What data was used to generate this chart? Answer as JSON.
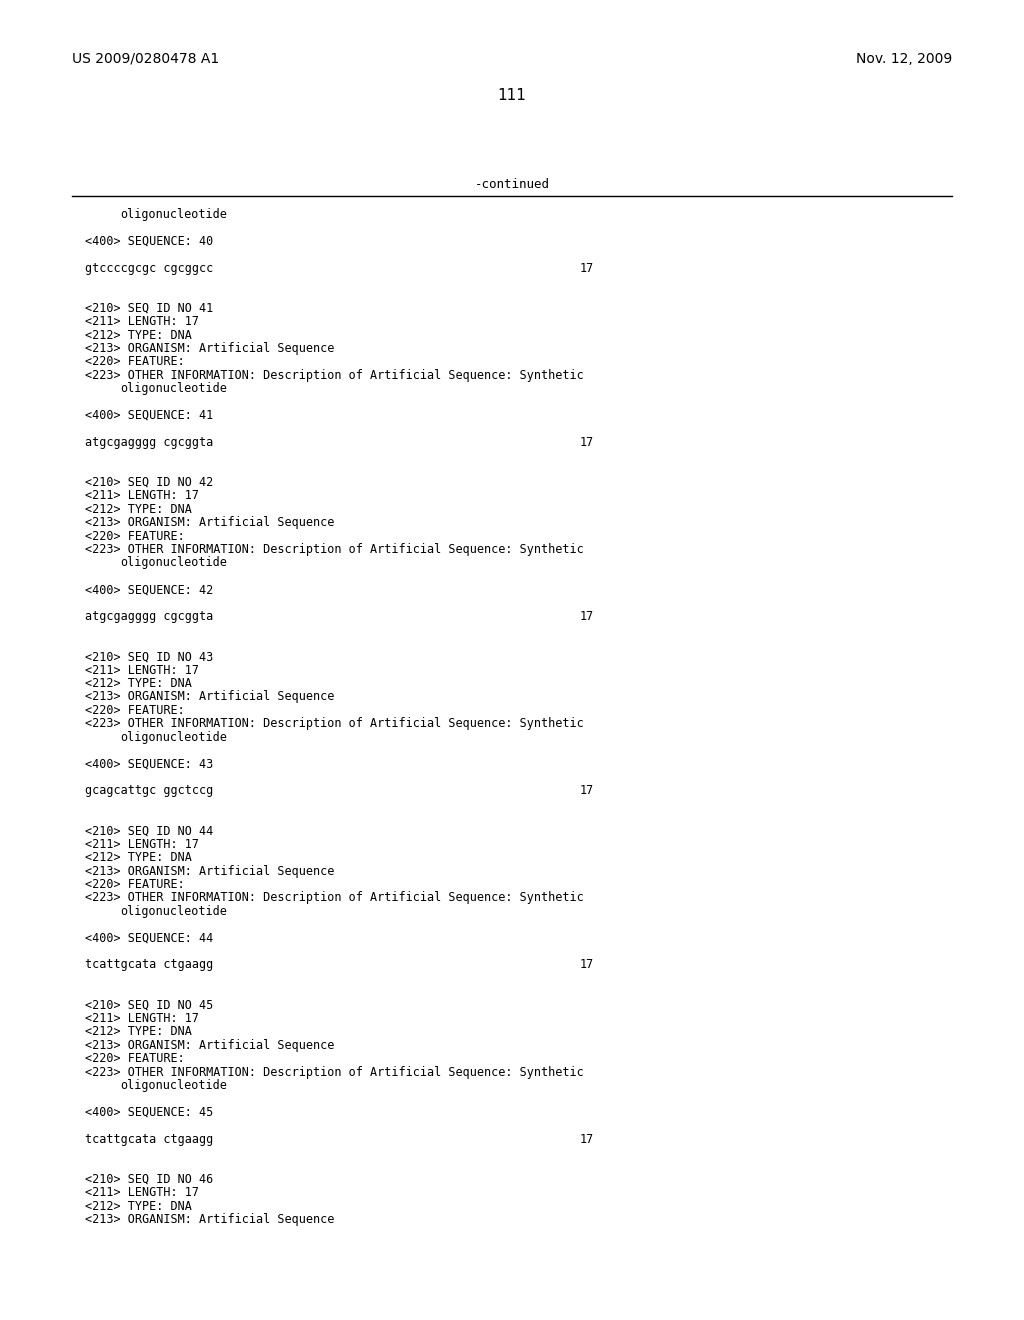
{
  "patent_number": "US 2009/0280478 A1",
  "date": "Nov. 12, 2009",
  "page_number": "111",
  "continued_label": "-continued",
  "background_color": "#ffffff",
  "text_color": "#000000",
  "lines": [
    {
      "type": "mono_indent",
      "text": "oligonucleotide"
    },
    {
      "type": "blank"
    },
    {
      "type": "mono",
      "text": "<400> SEQUENCE: 40"
    },
    {
      "type": "blank"
    },
    {
      "type": "mono_seq",
      "text": "gtccccgcgc cgcggcc",
      "number": "17"
    },
    {
      "type": "blank"
    },
    {
      "type": "blank"
    },
    {
      "type": "mono",
      "text": "<210> SEQ ID NO 41"
    },
    {
      "type": "mono",
      "text": "<211> LENGTH: 17"
    },
    {
      "type": "mono",
      "text": "<212> TYPE: DNA"
    },
    {
      "type": "mono",
      "text": "<213> ORGANISM: Artificial Sequence"
    },
    {
      "type": "mono",
      "text": "<220> FEATURE:"
    },
    {
      "type": "mono",
      "text": "<223> OTHER INFORMATION: Description of Artificial Sequence: Synthetic"
    },
    {
      "type": "mono_indent",
      "text": "oligonucleotide"
    },
    {
      "type": "blank"
    },
    {
      "type": "mono",
      "text": "<400> SEQUENCE: 41"
    },
    {
      "type": "blank"
    },
    {
      "type": "mono_seq",
      "text": "atgcgagggg cgcggta",
      "number": "17"
    },
    {
      "type": "blank"
    },
    {
      "type": "blank"
    },
    {
      "type": "mono",
      "text": "<210> SEQ ID NO 42"
    },
    {
      "type": "mono",
      "text": "<211> LENGTH: 17"
    },
    {
      "type": "mono",
      "text": "<212> TYPE: DNA"
    },
    {
      "type": "mono",
      "text": "<213> ORGANISM: Artificial Sequence"
    },
    {
      "type": "mono",
      "text": "<220> FEATURE:"
    },
    {
      "type": "mono",
      "text": "<223> OTHER INFORMATION: Description of Artificial Sequence: Synthetic"
    },
    {
      "type": "mono_indent",
      "text": "oligonucleotide"
    },
    {
      "type": "blank"
    },
    {
      "type": "mono",
      "text": "<400> SEQUENCE: 42"
    },
    {
      "type": "blank"
    },
    {
      "type": "mono_seq",
      "text": "atgcgagggg cgcggta",
      "number": "17"
    },
    {
      "type": "blank"
    },
    {
      "type": "blank"
    },
    {
      "type": "mono",
      "text": "<210> SEQ ID NO 43"
    },
    {
      "type": "mono",
      "text": "<211> LENGTH: 17"
    },
    {
      "type": "mono",
      "text": "<212> TYPE: DNA"
    },
    {
      "type": "mono",
      "text": "<213> ORGANISM: Artificial Sequence"
    },
    {
      "type": "mono",
      "text": "<220> FEATURE:"
    },
    {
      "type": "mono",
      "text": "<223> OTHER INFORMATION: Description of Artificial Sequence: Synthetic"
    },
    {
      "type": "mono_indent",
      "text": "oligonucleotide"
    },
    {
      "type": "blank"
    },
    {
      "type": "mono",
      "text": "<400> SEQUENCE: 43"
    },
    {
      "type": "blank"
    },
    {
      "type": "mono_seq",
      "text": "gcagcattgc ggctccg",
      "number": "17"
    },
    {
      "type": "blank"
    },
    {
      "type": "blank"
    },
    {
      "type": "mono",
      "text": "<210> SEQ ID NO 44"
    },
    {
      "type": "mono",
      "text": "<211> LENGTH: 17"
    },
    {
      "type": "mono",
      "text": "<212> TYPE: DNA"
    },
    {
      "type": "mono",
      "text": "<213> ORGANISM: Artificial Sequence"
    },
    {
      "type": "mono",
      "text": "<220> FEATURE:"
    },
    {
      "type": "mono",
      "text": "<223> OTHER INFORMATION: Description of Artificial Sequence: Synthetic"
    },
    {
      "type": "mono_indent",
      "text": "oligonucleotide"
    },
    {
      "type": "blank"
    },
    {
      "type": "mono",
      "text": "<400> SEQUENCE: 44"
    },
    {
      "type": "blank"
    },
    {
      "type": "mono_seq",
      "text": "tcattgcata ctgaagg",
      "number": "17"
    },
    {
      "type": "blank"
    },
    {
      "type": "blank"
    },
    {
      "type": "mono",
      "text": "<210> SEQ ID NO 45"
    },
    {
      "type": "mono",
      "text": "<211> LENGTH: 17"
    },
    {
      "type": "mono",
      "text": "<212> TYPE: DNA"
    },
    {
      "type": "mono",
      "text": "<213> ORGANISM: Artificial Sequence"
    },
    {
      "type": "mono",
      "text": "<220> FEATURE:"
    },
    {
      "type": "mono",
      "text": "<223> OTHER INFORMATION: Description of Artificial Sequence: Synthetic"
    },
    {
      "type": "mono_indent",
      "text": "oligonucleotide"
    },
    {
      "type": "blank"
    },
    {
      "type": "mono",
      "text": "<400> SEQUENCE: 45"
    },
    {
      "type": "blank"
    },
    {
      "type": "mono_seq",
      "text": "tcattgcata ctgaagg",
      "number": "17"
    },
    {
      "type": "blank"
    },
    {
      "type": "blank"
    },
    {
      "type": "mono",
      "text": "<210> SEQ ID NO 46"
    },
    {
      "type": "mono",
      "text": "<211> LENGTH: 17"
    },
    {
      "type": "mono",
      "text": "<212> TYPE: DNA"
    },
    {
      "type": "mono",
      "text": "<213> ORGANISM: Artificial Sequence"
    }
  ]
}
